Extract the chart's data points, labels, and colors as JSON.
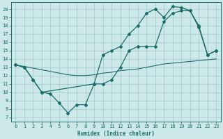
{
  "xlabel": "Humidex (Indice chaleur)",
  "xlim": [
    -0.5,
    23.5
  ],
  "ylim": [
    6.5,
    20.8
  ],
  "yticks": [
    7,
    8,
    9,
    10,
    11,
    12,
    13,
    14,
    15,
    16,
    17,
    18,
    19,
    20
  ],
  "xticks": [
    0,
    1,
    2,
    3,
    4,
    5,
    6,
    7,
    8,
    9,
    10,
    11,
    12,
    13,
    14,
    15,
    16,
    17,
    18,
    19,
    20,
    21,
    22,
    23
  ],
  "bg_color": "#cce8e8",
  "grid_color": "#a0c8c8",
  "line_color": "#1a6e6a",
  "line1_x": [
    0,
    1,
    2,
    3,
    4,
    5,
    6,
    7,
    8,
    9,
    10,
    11,
    12,
    13,
    14,
    15,
    16,
    17,
    18,
    19,
    20,
    21,
    22,
    23
  ],
  "line1_y": [
    13.3,
    13.0,
    11.5,
    10.0,
    9.8,
    8.7,
    7.5,
    8.5,
    8.5,
    11.0,
    11.0,
    11.5,
    13.0,
    15.0,
    15.5,
    15.5,
    15.5,
    18.5,
    19.5,
    19.8,
    19.8,
    17.8,
    14.5,
    15.0
  ],
  "line2_x": [
    0,
    1,
    2,
    3,
    9,
    10,
    11,
    12,
    13,
    14,
    15,
    16,
    17,
    18,
    19,
    20,
    21,
    22,
    23
  ],
  "line2_y": [
    13.3,
    13.0,
    11.5,
    10.0,
    11.0,
    14.5,
    15.0,
    15.5,
    17.0,
    18.0,
    19.5,
    20.0,
    19.0,
    20.3,
    20.2,
    19.8,
    18.0,
    14.5,
    15.0
  ],
  "line3_x": [
    0,
    1,
    2,
    3,
    4,
    5,
    6,
    7,
    8,
    9,
    10,
    11,
    12,
    13,
    14,
    15,
    16,
    17,
    18,
    19,
    20,
    21,
    22,
    23
  ],
  "line3_y": [
    13.3,
    13.1,
    12.9,
    12.7,
    12.5,
    12.3,
    12.1,
    12.0,
    12.0,
    12.1,
    12.3,
    12.4,
    12.6,
    12.7,
    12.8,
    13.0,
    13.2,
    13.4,
    13.5,
    13.6,
    13.7,
    13.8,
    13.9,
    14.0
  ]
}
